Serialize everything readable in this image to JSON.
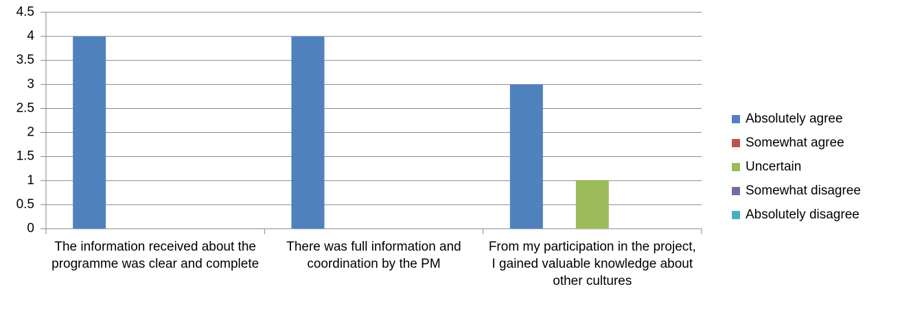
{
  "chart_data": {
    "type": "bar",
    "categories": [
      "The information  received about the programme was clear and complete",
      "There was full information and coordination by the PM",
      "From my participation in the project, I gained valuable knowledge about other cultures"
    ],
    "series": [
      {
        "name": "Absolutely agree",
        "color": "#4f81bd",
        "values": [
          4,
          4,
          3
        ]
      },
      {
        "name": "Somewhat agree",
        "color": "#c0504d",
        "values": [
          0,
          0,
          0
        ]
      },
      {
        "name": "Uncertain",
        "color": "#9bbb59",
        "values": [
          0,
          0,
          1
        ]
      },
      {
        "name": "Somewhat disagree",
        "color": "#8064a2",
        "values": [
          0,
          0,
          0
        ]
      },
      {
        "name": "Absolutely disagree",
        "color": "#4bacc6",
        "values": [
          0,
          0,
          0
        ]
      }
    ],
    "ylim": [
      0,
      4.5
    ],
    "yticks": [
      0,
      0.5,
      1,
      1.5,
      2,
      2.5,
      3,
      3.5,
      4,
      4.5
    ],
    "grid": true,
    "legend": "right"
  }
}
